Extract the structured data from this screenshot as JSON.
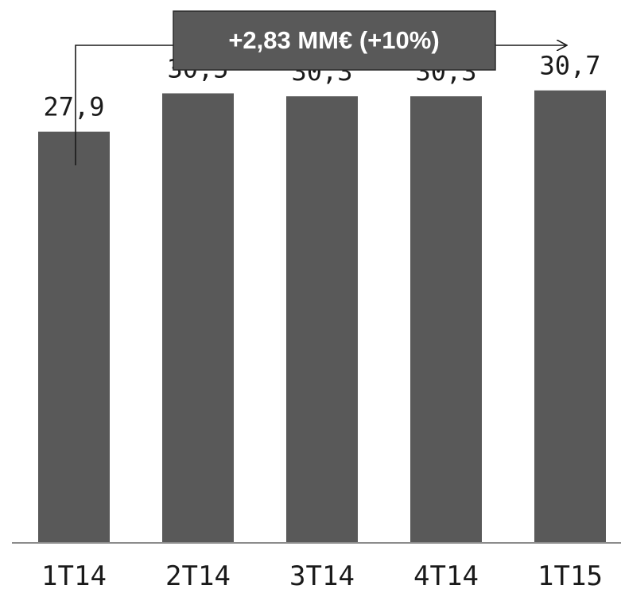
{
  "chart_data": {
    "type": "bar",
    "categories": [
      "1T14",
      "2T14",
      "3T14",
      "4T14",
      "1T15"
    ],
    "values": [
      27.9,
      30.5,
      30.3,
      30.3,
      30.7
    ],
    "value_labels": [
      "27,9",
      "30,5",
      "30,3",
      "30,3",
      "30,7"
    ],
    "title": "",
    "xlabel": "",
    "ylabel": "",
    "ylim": [
      0,
      35
    ],
    "grid": false,
    "legend": "none",
    "bar_color": "#595959",
    "annotation": {
      "text": "+2,83 MM€ (+10%)",
      "box_color": "#595959"
    }
  }
}
